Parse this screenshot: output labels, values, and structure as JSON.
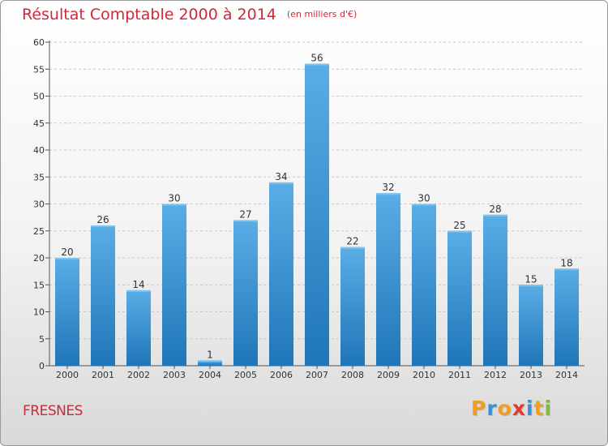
{
  "header": {
    "title": "Résultat Comptable 2000 à 2014",
    "subtitle": "(en milliers d'€)"
  },
  "footer": {
    "commune": "FRESNES",
    "brand": "Proxiti"
  },
  "colors": {
    "title": "#cc2a3a",
    "bar_top": "#5aaee6",
    "bar_bottom": "#1f76b8",
    "logo_letters": [
      "#f39c1e",
      "#3a8fd6",
      "#f39c1e",
      "#e23b2e",
      "#3a8fd6",
      "#f39c1e",
      "#7cbd3a"
    ]
  },
  "chart_data": {
    "type": "bar",
    "title": "Résultat Comptable 2000 à 2014",
    "subtitle": "(en milliers d'€)",
    "categories": [
      "2000",
      "2001",
      "2002",
      "2003",
      "2004",
      "2005",
      "2006",
      "2007",
      "2008",
      "2009",
      "2010",
      "2011",
      "2012",
      "2013",
      "2014"
    ],
    "values": [
      20,
      26,
      14,
      30,
      1,
      27,
      34,
      56,
      22,
      32,
      30,
      25,
      28,
      15,
      18
    ],
    "xlabel": "",
    "ylabel": "",
    "ylim": [
      0,
      60
    ],
    "yticks": [
      0,
      5,
      10,
      15,
      20,
      25,
      30,
      35,
      40,
      45,
      50,
      55,
      60
    ],
    "grid": true,
    "legend": "none"
  }
}
